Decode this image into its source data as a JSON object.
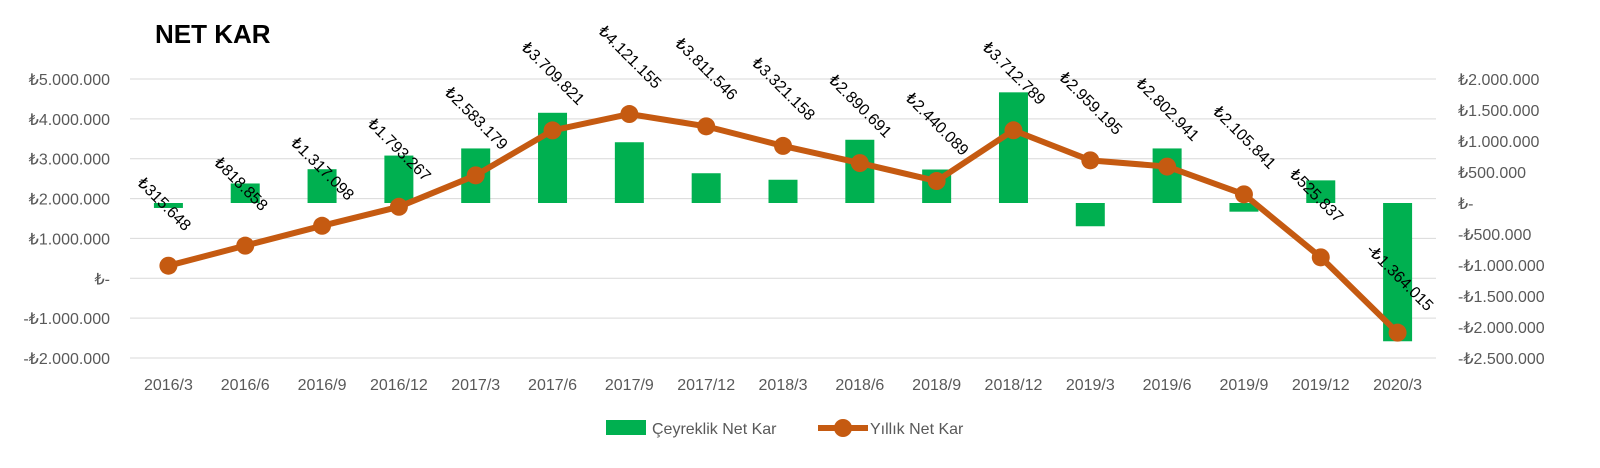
{
  "chart_data": {
    "type": "bar+line",
    "title": "NET KAR",
    "categories": [
      "2016/3",
      "2016/6",
      "2016/9",
      "2016/12",
      "2017/3",
      "2017/6",
      "2017/9",
      "2017/12",
      "2018/3",
      "2018/6",
      "2018/9",
      "2018/12",
      "2019/3",
      "2019/6",
      "2019/9",
      "2019/12",
      "2020/3"
    ],
    "series": [
      {
        "name": "Çeyreklik Net Kar",
        "type": "bar",
        "axis": "right",
        "color": "#00b050",
        "values": [
          -80000,
          315000,
          545000,
          765000,
          880000,
          1455000,
          980000,
          480000,
          375000,
          1020000,
          540000,
          1785000,
          -375000,
          880000,
          -140000,
          365000,
          -2230000
        ]
      },
      {
        "name": "Yıllık Net Kar",
        "type": "line",
        "axis": "left",
        "color": "#c55a11",
        "values": [
          315648,
          818858,
          1317098,
          1793267,
          2583179,
          3709821,
          4121155,
          3811546,
          3321158,
          2890691,
          2440089,
          3712789,
          2959195,
          2802941,
          2105841,
          525837,
          -1364015
        ],
        "labels": [
          "₺315.648",
          "₺818.858",
          "₺1.317.098",
          "₺1.793.267",
          "₺2.583.179",
          "₺3.709.821",
          "₺4.121.155",
          "₺3.811.546",
          "₺3.321.158",
          "₺2.890.691",
          "₺2.440.089",
          "₺3.712.789",
          "₺2.959.195",
          "₺2.802.941",
          "₺2.105.841",
          "₺525.837",
          "-₺1.364.015"
        ]
      }
    ],
    "left_axis": {
      "ylim": [
        -2000000,
        5000000
      ],
      "ticks": [
        5000000,
        4000000,
        3000000,
        2000000,
        1000000,
        0,
        -1000000,
        -2000000
      ],
      "tick_labels": [
        "₺5.000.000",
        "₺4.000.000",
        "₺3.000.000",
        "₺2.000.000",
        "₺1.000.000",
        "₺-",
        "-₺1.000.000",
        "-₺2.000.000"
      ]
    },
    "right_axis": {
      "ylim": [
        -2500000,
        2000000
      ],
      "ticks": [
        2000000,
        1500000,
        1000000,
        500000,
        0,
        -500000,
        -1000000,
        -1500000,
        -2000000,
        -2500000
      ],
      "tick_labels": [
        "₺2.000.000",
        "₺1.500.000",
        "₺1.000.000",
        "₺500.000",
        "₺-",
        "-₺500.000",
        "-₺1.000.000",
        "-₺1.500.000",
        "-₺2.000.000",
        "-₺2.500.000"
      ]
    },
    "grid": true,
    "legend_position": "bottom"
  }
}
